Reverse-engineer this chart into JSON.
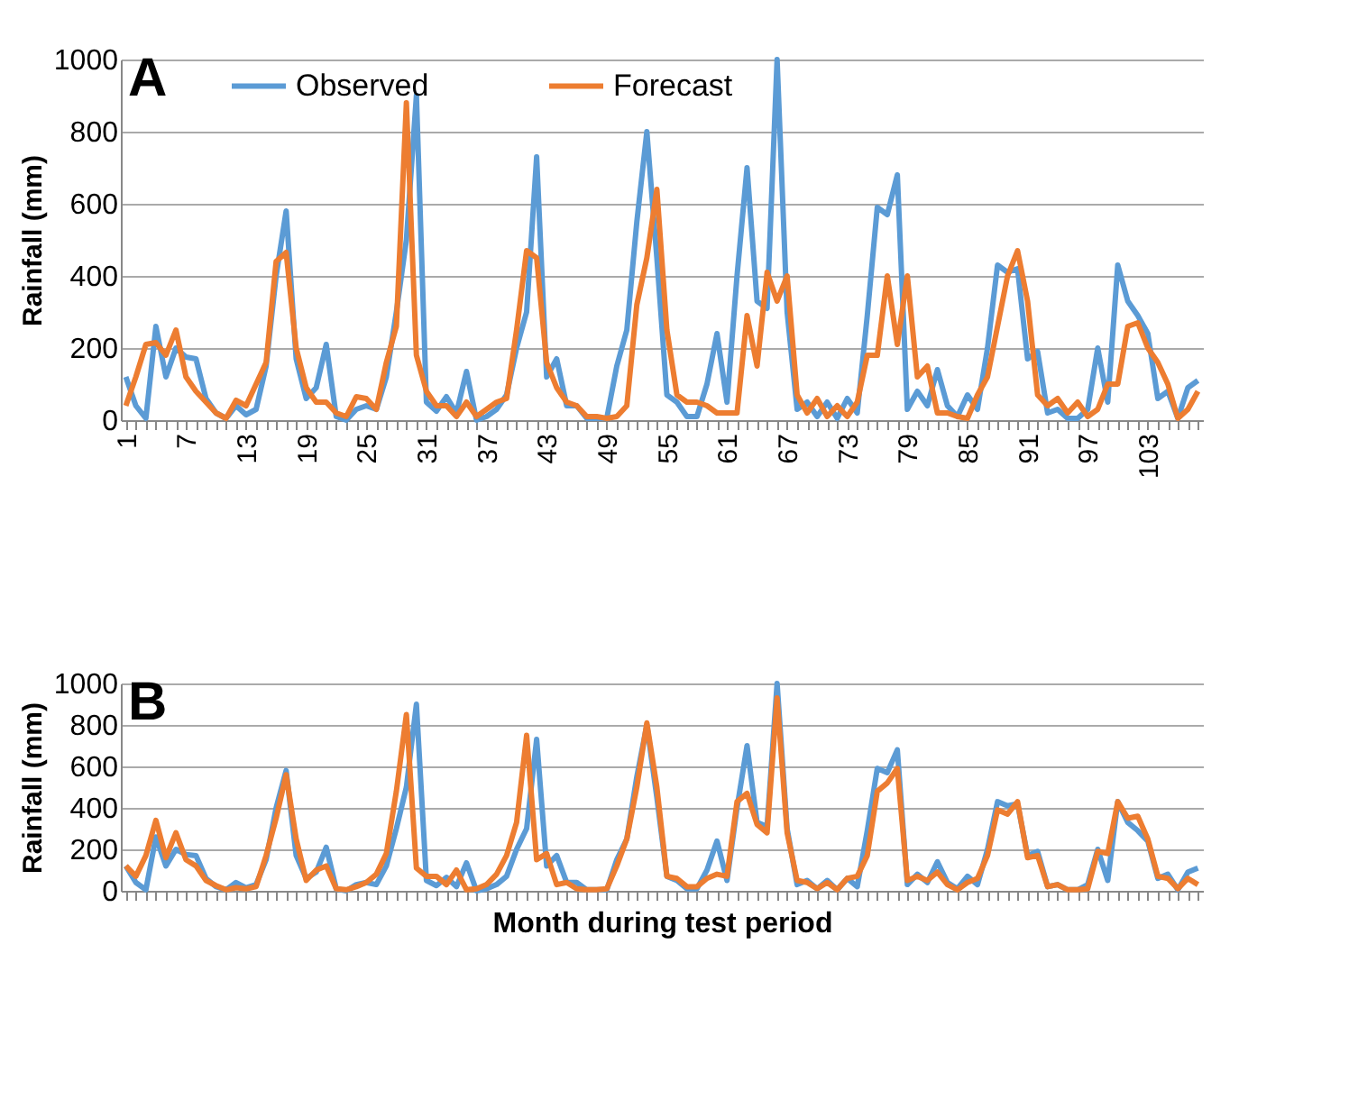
{
  "chart_data": [
    {
      "type": "line",
      "title": "A",
      "ylabel": "Rainfall (mm)",
      "categories": [
        "1",
        null,
        null,
        null,
        null,
        null,
        "7",
        null,
        null,
        null,
        null,
        null,
        "13",
        null,
        null,
        null,
        null,
        null,
        "19",
        null,
        null,
        null,
        null,
        null,
        "25",
        null,
        null,
        null,
        null,
        null,
        "31",
        null,
        null,
        null,
        null,
        null,
        "37",
        null,
        null,
        null,
        null,
        null,
        "43",
        null,
        null,
        null,
        null,
        null,
        "49",
        null,
        null,
        null,
        null,
        null,
        "55",
        null,
        null,
        null,
        null,
        null,
        "61",
        null,
        null,
        null,
        null,
        null,
        "67",
        null,
        null,
        null,
        null,
        null,
        "73",
        null,
        null,
        null,
        null,
        null,
        "79",
        null,
        null,
        null,
        null,
        null,
        "85",
        null,
        null,
        null,
        null,
        null,
        "91",
        null,
        null,
        null,
        null,
        null,
        "97",
        null,
        null,
        null,
        null,
        null,
        "103",
        null,
        null,
        null,
        null,
        null
      ],
      "series": [
        {
          "name": "Observed",
          "color": "#5b9bd5",
          "values": [
            120,
            40,
            5,
            260,
            120,
            200,
            175,
            170,
            60,
            20,
            5,
            40,
            15,
            30,
            150,
            400,
            580,
            170,
            60,
            90,
            210,
            10,
            0,
            30,
            40,
            30,
            120,
            300,
            500,
            900,
            50,
            25,
            65,
            20,
            135,
            0,
            10,
            30,
            70,
            200,
            300,
            730,
            120,
            170,
            40,
            40,
            5,
            5,
            5,
            150,
            250,
            550,
            800,
            450,
            70,
            50,
            10,
            10,
            100,
            240,
            50,
            400,
            700,
            330,
            310,
            1000,
            300,
            30,
            50,
            10,
            50,
            5,
            60,
            20,
            290,
            590,
            570,
            680,
            30,
            80,
            40,
            140,
            40,
            10,
            70,
            30,
            200,
            430,
            410,
            420,
            170,
            190,
            20,
            30,
            5,
            5,
            30,
            200,
            50,
            430,
            330,
            290,
            240,
            60,
            80,
            5,
            90,
            110
          ]
        },
        {
          "name": "Forecast",
          "color": "#ed7d31",
          "values": [
            40,
            120,
            210,
            215,
            180,
            250,
            120,
            80,
            50,
            20,
            5,
            55,
            40,
            100,
            160,
            440,
            465,
            200,
            90,
            50,
            50,
            20,
            10,
            65,
            60,
            30,
            160,
            260,
            880,
            180,
            80,
            40,
            40,
            10,
            50,
            10,
            30,
            50,
            60,
            250,
            470,
            450,
            160,
            90,
            50,
            40,
            10,
            10,
            5,
            10,
            40,
            320,
            450,
            640,
            250,
            70,
            50,
            50,
            40,
            20,
            20,
            20,
            290,
            150,
            410,
            330,
            400,
            70,
            20,
            60,
            10,
            40,
            10,
            50,
            180,
            180,
            400,
            210,
            400,
            120,
            150,
            20,
            20,
            10,
            5,
            70,
            120,
            260,
            400,
            470,
            330,
            70,
            40,
            60,
            20,
            50,
            10,
            30,
            100,
            100,
            260,
            270,
            200,
            160,
            100,
            5,
            30,
            80
          ]
        }
      ],
      "ylim": [
        0,
        1000
      ],
      "yticks": [
        0,
        200,
        400,
        600,
        800,
        1000
      ],
      "grid": "y",
      "legend": "top left"
    },
    {
      "type": "line",
      "title": "B",
      "ylabel": "Rainfall (mm)",
      "xlabel": "Month during test period",
      "categories": [
        "1",
        null,
        null,
        null,
        null,
        null,
        "7",
        null,
        null,
        null,
        null,
        null,
        "13",
        null,
        null,
        null,
        null,
        null,
        "19",
        null,
        null,
        null,
        null,
        null,
        "25",
        null,
        null,
        null,
        null,
        null,
        "31",
        null,
        null,
        null,
        null,
        null,
        "37",
        null,
        null,
        null,
        null,
        null,
        "43",
        null,
        null,
        null,
        null,
        null,
        "49",
        null,
        null,
        null,
        null,
        null,
        "55",
        null,
        null,
        null,
        null,
        null,
        "61",
        null,
        null,
        null,
        null,
        null,
        "67",
        null,
        null,
        null,
        null,
        null,
        "73",
        null,
        null,
        null,
        null,
        null,
        "79",
        null,
        null,
        null,
        null,
        null,
        "85",
        null,
        null,
        null,
        null,
        null,
        "91",
        null,
        null,
        null,
        null,
        null,
        "97",
        null,
        null,
        null,
        null,
        null,
        "103",
        null,
        null,
        null,
        null,
        null
      ],
      "series": [
        {
          "name": "Observed",
          "color": "#5b9bd5",
          "values": [
            120,
            40,
            5,
            260,
            120,
            200,
            175,
            170,
            60,
            20,
            5,
            40,
            15,
            30,
            150,
            400,
            580,
            170,
            60,
            90,
            210,
            10,
            0,
            30,
            40,
            30,
            120,
            300,
            500,
            900,
            50,
            25,
            65,
            20,
            135,
            0,
            10,
            30,
            70,
            200,
            300,
            730,
            120,
            170,
            40,
            40,
            5,
            5,
            5,
            150,
            250,
            550,
            800,
            450,
            70,
            50,
            10,
            10,
            100,
            240,
            50,
            400,
            700,
            330,
            310,
            1000,
            300,
            30,
            50,
            10,
            50,
            5,
            60,
            20,
            290,
            590,
            570,
            680,
            30,
            80,
            40,
            140,
            40,
            10,
            70,
            30,
            200,
            430,
            410,
            420,
            170,
            190,
            20,
            30,
            5,
            5,
            30,
            200,
            50,
            430,
            330,
            290,
            240,
            60,
            80,
            5,
            90,
            110
          ]
        },
        {
          "name": "Forecast",
          "color": "#ed7d31",
          "values": [
            120,
            70,
            170,
            340,
            160,
            280,
            150,
            120,
            50,
            25,
            5,
            15,
            10,
            20,
            170,
            350,
            560,
            250,
            50,
            100,
            120,
            10,
            5,
            20,
            40,
            80,
            180,
            480,
            850,
            110,
            70,
            70,
            30,
            100,
            5,
            10,
            30,
            80,
            170,
            330,
            750,
            150,
            180,
            30,
            40,
            10,
            5,
            5,
            10,
            120,
            250,
            500,
            810,
            500,
            70,
            60,
            20,
            20,
            60,
            80,
            70,
            430,
            470,
            320,
            280,
            930,
            280,
            50,
            40,
            10,
            40,
            5,
            60,
            70,
            170,
            480,
            520,
            590,
            50,
            70,
            50,
            90,
            30,
            5,
            40,
            60,
            170,
            390,
            370,
            430,
            160,
            170,
            20,
            30,
            5,
            5,
            10,
            190,
            180,
            430,
            350,
            360,
            250,
            70,
            60,
            10,
            60,
            30
          ]
        }
      ],
      "ylim": [
        0,
        1000
      ],
      "yticks": [
        0,
        200,
        400,
        600,
        800,
        1000
      ],
      "grid": "y",
      "legend": "top left",
      "tick_labels": "y"
    }
  ]
}
